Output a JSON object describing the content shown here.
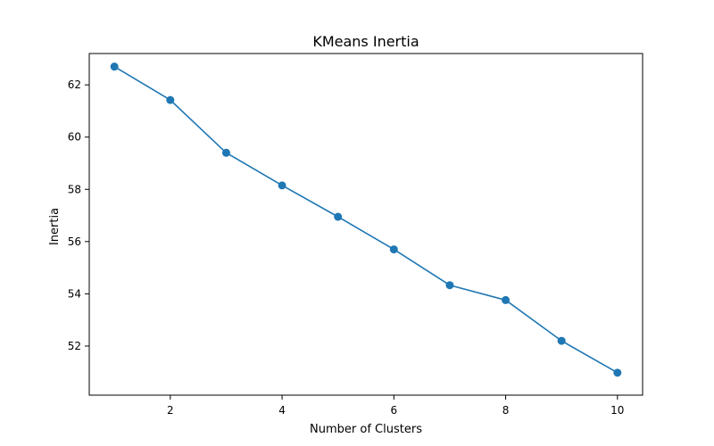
{
  "chart_data": {
    "type": "line",
    "title": "KMeans Inertia",
    "xlabel": "Number of Clusters",
    "ylabel": "Inertia",
    "x": [
      1,
      2,
      3,
      4,
      5,
      6,
      7,
      8,
      9,
      10
    ],
    "series": [
      {
        "values": [
          62.7,
          61.42,
          59.4,
          58.15,
          56.95,
          55.7,
          54.33,
          53.76,
          52.2,
          50.98
        ],
        "color": "#1f77b4",
        "marker": "circle"
      }
    ],
    "xticks": [
      2,
      4,
      6,
      8,
      10
    ],
    "yticks": [
      52,
      54,
      56,
      58,
      60,
      62
    ],
    "xlim": [
      0.55,
      10.45
    ],
    "ylim": [
      50.12,
      63.2
    ],
    "grid": false,
    "legend": "none"
  }
}
